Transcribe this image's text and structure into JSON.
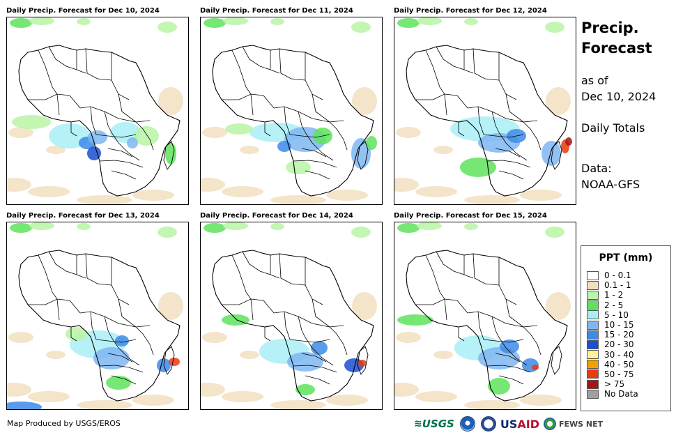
{
  "panels": [
    {
      "title": "Daily Precip. Forecast for Dec 10, 2024"
    },
    {
      "title": "Daily Precip. Forecast for Dec 11, 2024"
    },
    {
      "title": "Daily Precip. Forecast for Dec 12, 2024"
    },
    {
      "title": "Daily Precip. Forecast for Dec 13, 2024"
    },
    {
      "title": "Daily Precip. Forecast for Dec 14, 2024"
    },
    {
      "title": "Daily Precip. Forecast for Dec 15, 2024"
    }
  ],
  "side": {
    "title_line1": "Precip.",
    "title_line2": "Forecast",
    "asof_line1": "as of",
    "asof_line2": "Dec 10, 2024",
    "totals": "Daily Totals",
    "data_line1": "Data:",
    "data_line2": "NOAA-GFS"
  },
  "legend": {
    "title": "PPT (mm)",
    "items": [
      {
        "label": "0 - 0.1",
        "color": "#ffffff"
      },
      {
        "label": "0.1 - 1",
        "color": "#f2dfc0"
      },
      {
        "label": "1 - 2",
        "color": "#b8f5a6"
      },
      {
        "label": "2 - 5",
        "color": "#5ee35c"
      },
      {
        "label": "5 - 10",
        "color": "#a8eef6"
      },
      {
        "label": "10 - 15",
        "color": "#7fb6f2"
      },
      {
        "label": "15 - 20",
        "color": "#3d8ae8"
      },
      {
        "label": "20 - 30",
        "color": "#1a4fd0"
      },
      {
        "label": "30 - 40",
        "color": "#fff09c"
      },
      {
        "label": "40 - 50",
        "color": "#f3a100"
      },
      {
        "label": "50 - 75",
        "color": "#e93a0e"
      },
      {
        "label": "> 75",
        "color": "#a81414"
      },
      {
        "label": "No Data",
        "color": "#a0a0a0"
      }
    ]
  },
  "credit": "Map Produced by USGS/EROS",
  "logos": {
    "usgs": "USGS",
    "usaid_blue": "US",
    "usaid_red": "AID",
    "fews": "FEWS NET"
  }
}
